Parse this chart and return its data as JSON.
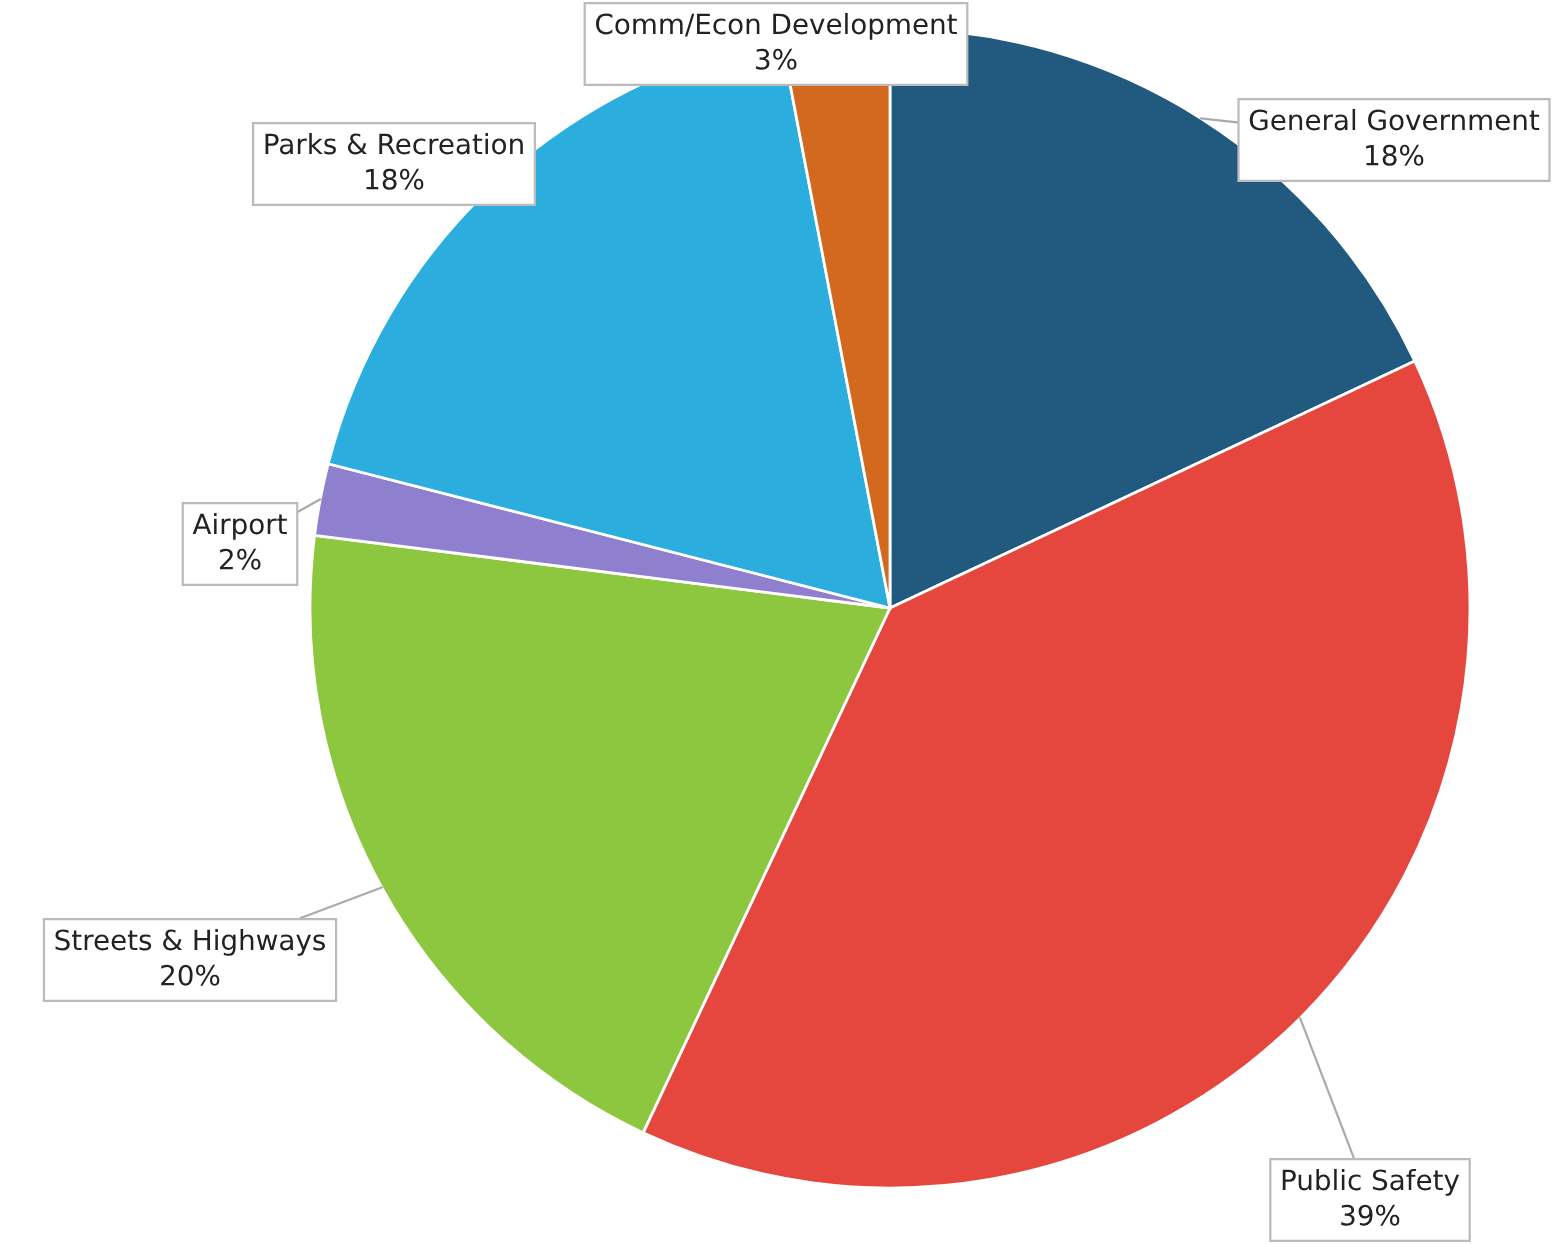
{
  "chart_data": {
    "type": "pie",
    "categories": [
      "General Government",
      "Public Safety",
      "Streets & Highways",
      "Airport",
      "Parks & Recreation",
      "Comm/Econ Development"
    ],
    "values": [
      18,
      39,
      20,
      2,
      18,
      3
    ],
    "value_labels": [
      "18%",
      "39%",
      "20%",
      "2%",
      "18%",
      "3%"
    ],
    "colors": [
      "#215a7e",
      "#e5463e",
      "#8dc63f",
      "#8e80cf",
      "#2badde",
      "#d2691f"
    ],
    "legend": false
  }
}
